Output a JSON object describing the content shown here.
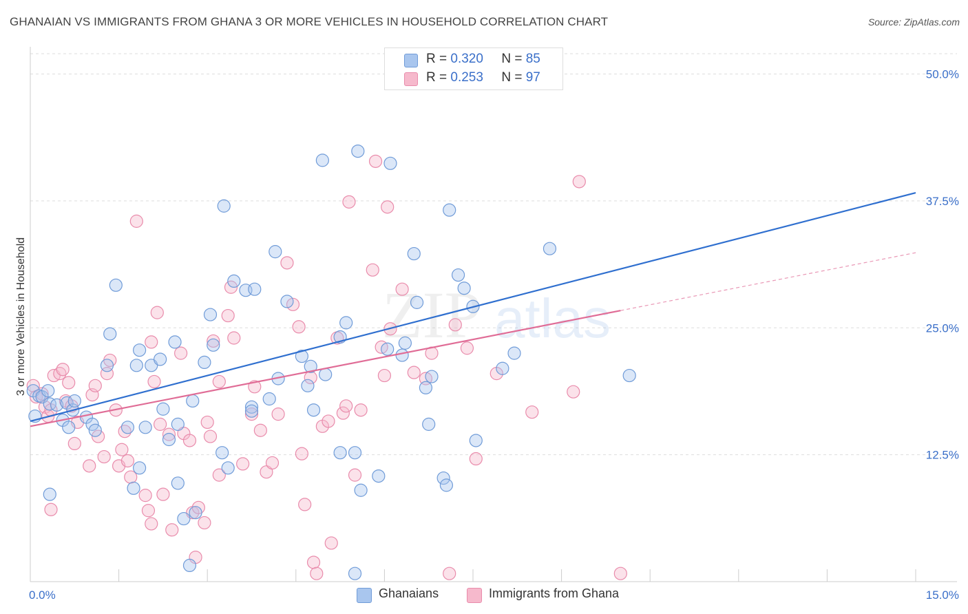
{
  "title": "GHANAIAN VS IMMIGRANTS FROM GHANA 3 OR MORE VEHICLES IN HOUSEHOLD CORRELATION CHART",
  "source": "Source: ZipAtlas.com",
  "watermark": {
    "zip": "ZIP",
    "atlas": "atlas"
  },
  "legend_top": [
    {
      "r_label": "R =",
      "r_value": "0.320",
      "n_label": "N =",
      "n_value": "85"
    },
    {
      "r_label": "R =",
      "r_value": "0.253",
      "n_label": "N =",
      "n_value": "97"
    }
  ],
  "legend_bottom": [
    "Ghanaians",
    "Immigrants from Ghana"
  ],
  "colors": {
    "blue_fill": "#a9c6ee",
    "blue_stroke": "#6f9bd8",
    "blue_line": "#2f6fcf",
    "pink_fill": "#f6b9cc",
    "pink_stroke": "#e98bab",
    "pink_line": "#e06c96",
    "tick_label": "#3a6fc9",
    "grid": "#dddddd"
  },
  "chart_data": {
    "type": "scatter",
    "title": "GHANAIAN VS IMMIGRANTS FROM GHANA 3 OR MORE VEHICLES IN HOUSEHOLD CORRELATION CHART",
    "ylabel": "3 or more Vehicles in Household",
    "xlabel": "",
    "xlim": [
      0,
      15
    ],
    "ylim": [
      0,
      52
    ],
    "x_tick_labels": [
      "0.0%",
      "15.0%"
    ],
    "y_ticks": [
      12.5,
      25.0,
      37.5,
      50.0
    ],
    "y_tick_labels": [
      "12.5%",
      "25.0%",
      "37.5%",
      "50.0%"
    ],
    "grid": true,
    "legend_placement": "top-center",
    "series": [
      {
        "name": "Ghanaians",
        "r": 0.32,
        "n": 85,
        "trend": {
          "x": [
            0,
            15
          ],
          "y": [
            15.8,
            38.3
          ]
        },
        "points": [
          [
            0.05,
            18.8
          ],
          [
            0.08,
            16.3
          ],
          [
            0.15,
            18.3
          ],
          [
            0.2,
            18.2
          ],
          [
            0.3,
            18.8
          ],
          [
            0.33,
            17.5
          ],
          [
            0.45,
            17.4
          ],
          [
            0.55,
            15.9
          ],
          [
            0.62,
            17.6
          ],
          [
            0.65,
            15.2
          ],
          [
            0.72,
            16.9
          ],
          [
            0.75,
            17.8
          ],
          [
            0.95,
            16.2
          ],
          [
            1.05,
            15.5
          ],
          [
            1.1,
            14.9
          ],
          [
            1.3,
            21.3
          ],
          [
            1.35,
            24.4
          ],
          [
            1.45,
            29.2
          ],
          [
            0.33,
            8.6
          ],
          [
            1.85,
            11.2
          ],
          [
            1.75,
            9.2
          ],
          [
            1.65,
            15.2
          ],
          [
            1.8,
            21.3
          ],
          [
            1.85,
            22.8
          ],
          [
            1.95,
            15.2
          ],
          [
            2.05,
            21.3
          ],
          [
            2.2,
            21.9
          ],
          [
            2.25,
            17.0
          ],
          [
            2.35,
            14.0
          ],
          [
            2.45,
            23.6
          ],
          [
            2.5,
            15.5
          ],
          [
            2.5,
            9.7
          ],
          [
            2.6,
            6.2
          ],
          [
            2.7,
            1.6
          ],
          [
            2.75,
            17.8
          ],
          [
            2.8,
            6.8
          ],
          [
            2.95,
            21.6
          ],
          [
            3.05,
            26.3
          ],
          [
            3.1,
            23.3
          ],
          [
            3.25,
            12.7
          ],
          [
            3.28,
            37.0
          ],
          [
            3.35,
            11.2
          ],
          [
            3.45,
            29.6
          ],
          [
            3.65,
            28.7
          ],
          [
            3.75,
            17.2
          ],
          [
            3.75,
            16.8
          ],
          [
            3.8,
            28.8
          ],
          [
            4.05,
            18.0
          ],
          [
            4.15,
            32.5
          ],
          [
            4.2,
            20.0
          ],
          [
            4.35,
            27.6
          ],
          [
            4.6,
            22.2
          ],
          [
            4.7,
            19.3
          ],
          [
            4.75,
            21.2
          ],
          [
            4.8,
            16.9
          ],
          [
            5.0,
            20.4
          ],
          [
            4.95,
            41.5
          ],
          [
            5.25,
            12.7
          ],
          [
            5.55,
            42.4
          ],
          [
            5.35,
            25.5
          ],
          [
            5.25,
            24.1
          ],
          [
            5.5,
            12.7
          ],
          [
            5.6,
            9.0
          ],
          [
            5.9,
            10.4
          ],
          [
            6.05,
            22.9
          ],
          [
            6.1,
            41.2
          ],
          [
            6.3,
            22.3
          ],
          [
            6.35,
            23.5
          ],
          [
            6.5,
            32.3
          ],
          [
            6.55,
            27.5
          ],
          [
            6.7,
            19.1
          ],
          [
            6.8,
            20.2
          ],
          [
            6.75,
            15.5
          ],
          [
            7.0,
            10.2
          ],
          [
            7.05,
            9.5
          ],
          [
            7.1,
            36.6
          ],
          [
            7.25,
            30.2
          ],
          [
            7.35,
            28.9
          ],
          [
            7.5,
            27.1
          ],
          [
            7.55,
            13.9
          ],
          [
            8.0,
            21.0
          ],
          [
            8.2,
            22.5
          ],
          [
            8.8,
            32.8
          ],
          [
            10.15,
            20.3
          ],
          [
            5.5,
            0.8
          ]
        ]
      },
      {
        "name": "Immigrants from Ghana",
        "r": 0.253,
        "n": 97,
        "trend": {
          "x": [
            0,
            10
          ],
          "y": [
            15.3,
            26.7
          ]
        },
        "trend_dashed": {
          "x": [
            10,
            15
          ],
          "y": [
            26.7,
            32.4
          ]
        },
        "points": [
          [
            0.05,
            19.3
          ],
          [
            0.1,
            18.2
          ],
          [
            0.2,
            18.5
          ],
          [
            0.25,
            17.2
          ],
          [
            0.3,
            16.3
          ],
          [
            0.35,
            16.9
          ],
          [
            0.4,
            20.3
          ],
          [
            0.5,
            20.5
          ],
          [
            0.55,
            20.9
          ],
          [
            0.6,
            17.8
          ],
          [
            0.65,
            19.6
          ],
          [
            0.7,
            17.3
          ],
          [
            0.75,
            13.6
          ],
          [
            0.8,
            15.7
          ],
          [
            0.35,
            7.1
          ],
          [
            1.0,
            11.4
          ],
          [
            1.05,
            18.4
          ],
          [
            1.1,
            19.3
          ],
          [
            1.15,
            14.3
          ],
          [
            1.25,
            12.3
          ],
          [
            1.3,
            20.5
          ],
          [
            1.35,
            21.8
          ],
          [
            1.45,
            16.9
          ],
          [
            1.5,
            11.4
          ],
          [
            1.55,
            13.0
          ],
          [
            1.6,
            14.8
          ],
          [
            1.65,
            11.9
          ],
          [
            1.7,
            10.3
          ],
          [
            1.8,
            35.5
          ],
          [
            1.95,
            8.5
          ],
          [
            2.0,
            7.0
          ],
          [
            2.05,
            5.7
          ],
          [
            2.05,
            23.6
          ],
          [
            2.1,
            19.7
          ],
          [
            2.15,
            26.5
          ],
          [
            2.2,
            15.5
          ],
          [
            2.25,
            8.6
          ],
          [
            2.35,
            14.5
          ],
          [
            2.4,
            5.1
          ],
          [
            2.55,
            22.5
          ],
          [
            2.6,
            14.6
          ],
          [
            2.7,
            13.9
          ],
          [
            2.75,
            6.8
          ],
          [
            2.8,
            2.4
          ],
          [
            2.85,
            7.3
          ],
          [
            2.95,
            5.8
          ],
          [
            3.0,
            15.7
          ],
          [
            3.05,
            14.3
          ],
          [
            3.1,
            23.7
          ],
          [
            3.2,
            19.7
          ],
          [
            3.2,
            10.5
          ],
          [
            3.35,
            26.2
          ],
          [
            3.4,
            29.0
          ],
          [
            3.45,
            24.0
          ],
          [
            3.6,
            11.6
          ],
          [
            3.75,
            16.5
          ],
          [
            3.8,
            19.2
          ],
          [
            3.9,
            14.9
          ],
          [
            4.0,
            10.8
          ],
          [
            4.1,
            11.7
          ],
          [
            4.2,
            16.5
          ],
          [
            4.35,
            31.4
          ],
          [
            4.45,
            27.3
          ],
          [
            4.55,
            25.1
          ],
          [
            4.6,
            12.6
          ],
          [
            4.65,
            7.6
          ],
          [
            4.75,
            20.1
          ],
          [
            4.8,
            1.9
          ],
          [
            4.85,
            0.8
          ],
          [
            4.95,
            15.3
          ],
          [
            5.05,
            15.8
          ],
          [
            5.1,
            3.8
          ],
          [
            5.2,
            24.0
          ],
          [
            5.3,
            16.6
          ],
          [
            5.35,
            17.3
          ],
          [
            5.4,
            37.4
          ],
          [
            5.5,
            10.5
          ],
          [
            5.6,
            16.9
          ],
          [
            5.8,
            30.7
          ],
          [
            5.85,
            41.4
          ],
          [
            5.95,
            23.1
          ],
          [
            6.0,
            20.3
          ],
          [
            6.05,
            36.9
          ],
          [
            6.1,
            24.9
          ],
          [
            6.3,
            28.8
          ],
          [
            6.5,
            20.6
          ],
          [
            6.7,
            20.0
          ],
          [
            6.8,
            22.5
          ],
          [
            7.1,
            0.8
          ],
          [
            7.2,
            25.3
          ],
          [
            7.4,
            23.0
          ],
          [
            7.55,
            12.1
          ],
          [
            7.9,
            20.5
          ],
          [
            9.3,
            39.4
          ],
          [
            8.5,
            16.7
          ],
          [
            9.2,
            18.7
          ],
          [
            10.0,
            0.8
          ]
        ]
      }
    ]
  }
}
